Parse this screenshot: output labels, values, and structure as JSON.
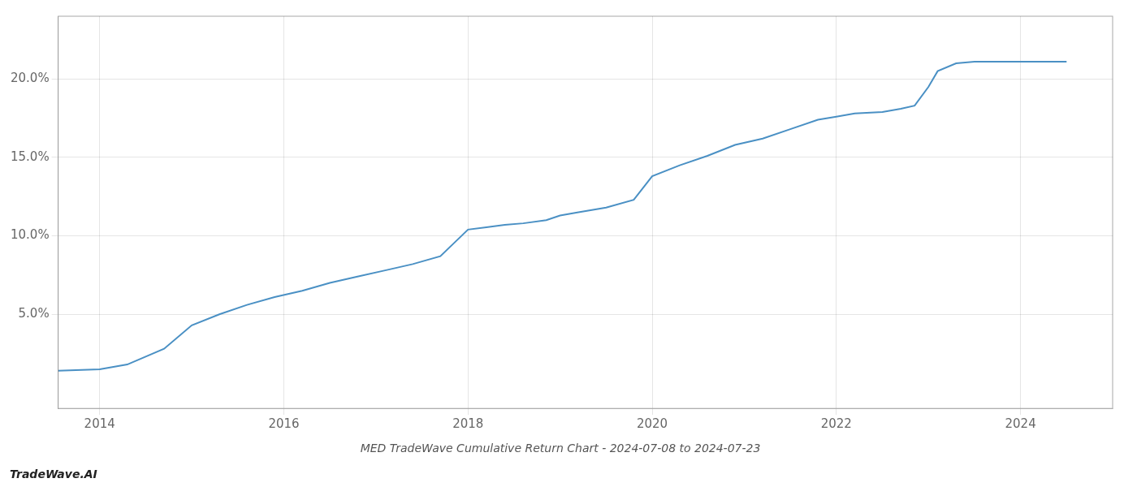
{
  "chart_data": {
    "type": "line",
    "title": "MED TradeWave Cumulative Return Chart - 2024-07-08 to 2024-07-23",
    "annotations": [
      "TradeWave.AI"
    ],
    "x": [
      2013.55,
      2014.0,
      2014.3,
      2014.7,
      2015.0,
      2015.3,
      2015.6,
      2015.9,
      2016.2,
      2016.5,
      2016.8,
      2017.1,
      2017.4,
      2017.7,
      2018.0,
      2018.2,
      2018.4,
      2018.6,
      2018.85,
      2019.0,
      2019.2,
      2019.5,
      2019.8,
      2020.0,
      2020.3,
      2020.6,
      2020.9,
      2021.2,
      2021.5,
      2021.8,
      2022.0,
      2022.2,
      2022.5,
      2022.7,
      2022.85,
      2023.0,
      2023.1,
      2023.3,
      2023.5,
      2024.0,
      2024.5
    ],
    "values": [
      1.4,
      1.5,
      1.8,
      2.8,
      4.3,
      5.0,
      5.6,
      6.1,
      6.5,
      7.0,
      7.4,
      7.8,
      8.2,
      8.7,
      10.4,
      10.55,
      10.7,
      10.8,
      11.0,
      11.3,
      11.5,
      11.8,
      12.3,
      13.8,
      14.5,
      15.1,
      15.8,
      16.2,
      16.8,
      17.4,
      17.6,
      17.8,
      17.9,
      18.1,
      18.3,
      19.5,
      20.5,
      21.0,
      21.1,
      21.1,
      21.1
    ],
    "color": "#4a90c4",
    "xlim": [
      2013.55,
      2025.0
    ],
    "xticks": [
      2014,
      2016,
      2018,
      2020,
      2022,
      2024
    ],
    "ylim": [
      -1.0,
      24.0
    ],
    "yticks": [
      {
        "value": 5.0,
        "label": "5.0%"
      },
      {
        "value": 10.0,
        "label": "10.0%"
      },
      {
        "value": 15.0,
        "label": "15.0%"
      },
      {
        "value": 20.0,
        "label": "20.0%"
      }
    ],
    "grid": true
  }
}
